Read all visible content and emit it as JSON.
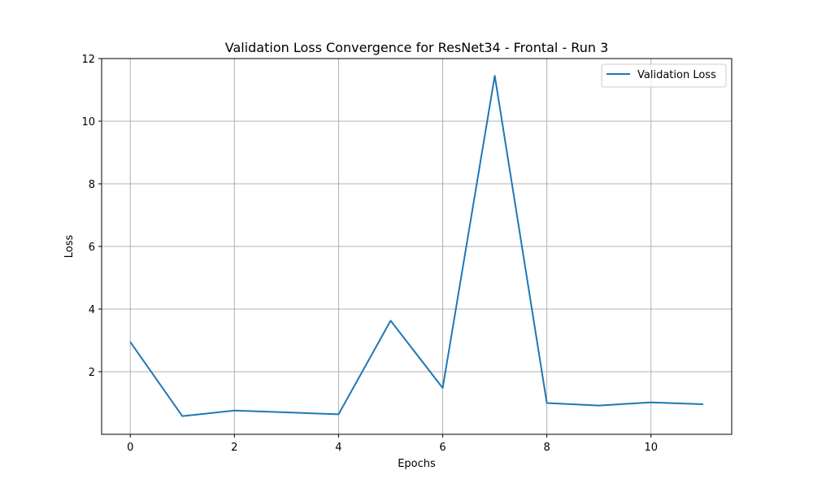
{
  "chart_data": {
    "type": "line",
    "title": "Validation Loss Convergence for ResNet34 - Frontal - Run 3",
    "xlabel": "Epochs",
    "ylabel": "Loss",
    "x": [
      0,
      1,
      2,
      3,
      4,
      5,
      6,
      7,
      8,
      9,
      10,
      11
    ],
    "series": [
      {
        "name": "Validation Loss",
        "color": "#1f77b4",
        "values": [
          2.95,
          0.58,
          0.76,
          0.7,
          0.64,
          3.63,
          1.48,
          11.45,
          1.0,
          0.92,
          1.02,
          0.96
        ]
      }
    ],
    "xticks": [
      0,
      2,
      4,
      6,
      8,
      10
    ],
    "yticks": [
      2,
      4,
      6,
      8,
      10,
      12
    ],
    "xlim": [
      -0.55,
      11.55
    ],
    "ylim": [
      0.0,
      12.0
    ],
    "grid": true,
    "legend_position": "top-right"
  }
}
